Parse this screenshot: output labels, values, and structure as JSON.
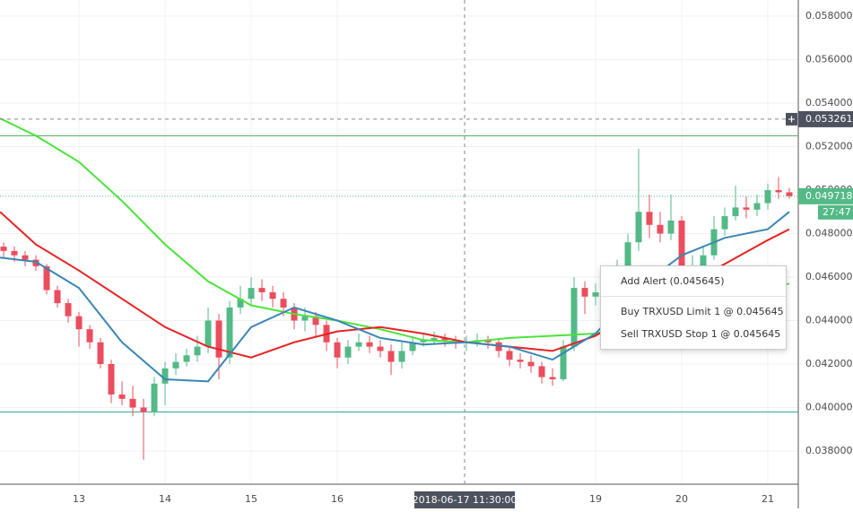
{
  "chart_data": {
    "type": "candlestick",
    "xlim": [
      12.083,
      21.354
    ],
    "ylim": [
      0.036474,
      0.058742
    ],
    "xticks": [
      13,
      14,
      15,
      16,
      19,
      20,
      21
    ],
    "yticks": [
      {
        "value": 0.038,
        "label": "0.038000"
      },
      {
        "value": 0.04,
        "label": "0.040000"
      },
      {
        "value": 0.042,
        "label": "0.042000"
      },
      {
        "value": 0.044,
        "label": "0.044000"
      },
      {
        "value": 0.046,
        "label": "0.046000"
      },
      {
        "value": 0.048,
        "label": "0.048000"
      },
      {
        "value": 0.05,
        "label": "0.050000"
      },
      {
        "value": 0.052,
        "label": "0.052000"
      },
      {
        "value": 0.054,
        "label": "0.054000"
      },
      {
        "value": 0.056,
        "label": "0.056000"
      },
      {
        "value": 0.058,
        "label": "0.058000"
      }
    ],
    "grid": true,
    "up_color": "#53b987",
    "down_color": "#eb4d5c",
    "candles": {
      "x": [
        12.125,
        12.25,
        12.375,
        12.5,
        12.625,
        12.75,
        12.875,
        13,
        13.125,
        13.25,
        13.375,
        13.5,
        13.625,
        13.75,
        13.875,
        14,
        14.125,
        14.25,
        14.375,
        14.5,
        14.625,
        14.75,
        14.875,
        15,
        15.125,
        15.25,
        15.375,
        15.5,
        15.625,
        15.75,
        15.875,
        16,
        16.125,
        16.25,
        16.375,
        16.5,
        16.625,
        16.75,
        16.875,
        17,
        17.125,
        17.25,
        17.375,
        17.5,
        17.625,
        17.75,
        17.875,
        18,
        18.125,
        18.25,
        18.375,
        18.5,
        18.625,
        18.75,
        18.875,
        19,
        19.125,
        19.25,
        19.375,
        19.5,
        19.625,
        19.75,
        19.875,
        20,
        20.125,
        20.25,
        20.375,
        20.5,
        20.625,
        20.75,
        20.875,
        21,
        21.125,
        21.25
      ],
      "open": [
        0.0474,
        0.0472,
        0.047,
        0.0468,
        0.0465,
        0.0454,
        0.0448,
        0.0442,
        0.0436,
        0.043,
        0.042,
        0.0406,
        0.0404,
        0.04,
        0.0398,
        0.0411,
        0.0418,
        0.0421,
        0.0424,
        0.0428,
        0.044,
        0.0423,
        0.0446,
        0.045,
        0.0455,
        0.0453,
        0.045,
        0.0446,
        0.044,
        0.0442,
        0.0438,
        0.043,
        0.0423,
        0.0428,
        0.043,
        0.0428,
        0.0426,
        0.0421,
        0.0426,
        0.043,
        0.0431,
        0.0432,
        0.0431,
        0.043,
        0.043,
        0.0431,
        0.043,
        0.0426,
        0.0422,
        0.0421,
        0.0419,
        0.0414,
        0.0413,
        0.0428,
        0.0455,
        0.0451,
        0.0453,
        0.0456,
        0.0465,
        0.0476,
        0.049,
        0.0484,
        0.048,
        0.0486,
        0.0462,
        0.0465,
        0.047,
        0.0482,
        0.0488,
        0.0492,
        0.0491,
        0.0494,
        0.05,
        0.0499
      ],
      "high": [
        0.0476,
        0.0474,
        0.0472,
        0.047,
        0.0466,
        0.0456,
        0.045,
        0.0444,
        0.0438,
        0.0432,
        0.0422,
        0.0412,
        0.041,
        0.0404,
        0.0414,
        0.0421,
        0.0425,
        0.0427,
        0.0433,
        0.0446,
        0.0443,
        0.0449,
        0.0456,
        0.046,
        0.0459,
        0.0456,
        0.0453,
        0.0448,
        0.0446,
        0.0444,
        0.044,
        0.0432,
        0.0431,
        0.0434,
        0.0433,
        0.0431,
        0.0429,
        0.043,
        0.0433,
        0.0434,
        0.0435,
        0.0434,
        0.0433,
        0.0433,
        0.0434,
        0.0433,
        0.0432,
        0.0428,
        0.0425,
        0.0424,
        0.0421,
        0.0418,
        0.0431,
        0.046,
        0.0458,
        0.0457,
        0.0459,
        0.0468,
        0.048,
        0.0519,
        0.0498,
        0.049,
        0.0498,
        0.0488,
        0.047,
        0.0474,
        0.0488,
        0.0492,
        0.0502,
        0.0497,
        0.0498,
        0.0503,
        0.0506,
        0.0501
      ],
      "low": [
        0.0469,
        0.0467,
        0.0465,
        0.0463,
        0.0452,
        0.0446,
        0.0439,
        0.0428,
        0.0427,
        0.0418,
        0.0402,
        0.0401,
        0.0396,
        0.0376,
        0.0396,
        0.0401,
        0.0415,
        0.0419,
        0.0421,
        0.0425,
        0.0413,
        0.042,
        0.0443,
        0.0447,
        0.0449,
        0.0446,
        0.0442,
        0.0436,
        0.0435,
        0.0432,
        0.0426,
        0.0418,
        0.042,
        0.0426,
        0.0425,
        0.0423,
        0.0415,
        0.0418,
        0.0424,
        0.0428,
        0.0429,
        0.0428,
        0.0427,
        0.0426,
        0.0428,
        0.0427,
        0.0423,
        0.0419,
        0.0418,
        0.0416,
        0.0411,
        0.041,
        0.0412,
        0.0426,
        0.0443,
        0.0447,
        0.045,
        0.0453,
        0.0462,
        0.0472,
        0.0478,
        0.0476,
        0.0477,
        0.0458,
        0.0455,
        0.0462,
        0.0468,
        0.0479,
        0.0486,
        0.0487,
        0.0488,
        0.0491,
        0.0496,
        0.0496
      ],
      "close": [
        0.0472,
        0.047,
        0.0468,
        0.0465,
        0.0454,
        0.0448,
        0.0442,
        0.0436,
        0.043,
        0.042,
        0.0406,
        0.0404,
        0.04,
        0.0398,
        0.0411,
        0.0418,
        0.0421,
        0.0424,
        0.0428,
        0.044,
        0.0423,
        0.0446,
        0.045,
        0.0455,
        0.0453,
        0.045,
        0.0446,
        0.044,
        0.0442,
        0.0438,
        0.043,
        0.0423,
        0.0428,
        0.043,
        0.0428,
        0.0426,
        0.0421,
        0.0426,
        0.043,
        0.0431,
        0.0432,
        0.0431,
        0.043,
        0.043,
        0.0431,
        0.043,
        0.0426,
        0.0422,
        0.0421,
        0.0419,
        0.0414,
        0.0413,
        0.0428,
        0.0455,
        0.0451,
        0.0453,
        0.0456,
        0.0465,
        0.0476,
        0.049,
        0.0484,
        0.048,
        0.0486,
        0.0462,
        0.0465,
        0.047,
        0.0482,
        0.0488,
        0.0492,
        0.0491,
        0.0494,
        0.05,
        0.0499,
        0.049718
      ]
    },
    "series_x": [
      12.083,
      12.5,
      13,
      13.5,
      14,
      14.5,
      15,
      15.5,
      16,
      16.5,
      17,
      17.5,
      18,
      18.5,
      19,
      19.5,
      20,
      20.5,
      21,
      21.25
    ],
    "series": [
      {
        "color": "#4be33b",
        "values": [
          0.0533,
          0.0525,
          0.0513,
          0.0495,
          0.0475,
          0.0458,
          0.0447,
          0.0443,
          0.044,
          0.0436,
          0.0431,
          0.043,
          0.0432,
          0.0433,
          0.0434,
          0.0438,
          0.0444,
          0.045,
          0.0455,
          0.0457
        ]
      },
      {
        "color": "#e52222",
        "values": [
          0.049,
          0.0475,
          0.0463,
          0.045,
          0.0437,
          0.0428,
          0.0423,
          0.043,
          0.0435,
          0.0437,
          0.0434,
          0.043,
          0.0428,
          0.0426,
          0.0433,
          0.0445,
          0.0455,
          0.0466,
          0.0477,
          0.0482
        ]
      },
      {
        "color": "#3a86b4",
        "values": [
          0.0469,
          0.0467,
          0.0455,
          0.043,
          0.0413,
          0.0412,
          0.0437,
          0.0446,
          0.044,
          0.0432,
          0.0429,
          0.043,
          0.0428,
          0.0422,
          0.0434,
          0.0455,
          0.047,
          0.0478,
          0.0482,
          0.049
        ]
      }
    ],
    "hlines": [
      {
        "value": 0.0525,
        "color": "#4caf50"
      },
      {
        "value": 0.0398,
        "color": "#26a69a"
      }
    ],
    "crosshair_y": {
      "value": 0.053261,
      "label": "0.053261"
    },
    "crosshair_x": {
      "value": 17.479,
      "label": "2018-06-17 11:30:00"
    },
    "last_price": {
      "value": 0.049718,
      "label": "0.049718",
      "countdown": "27:47",
      "color": "#53b987"
    }
  },
  "context_menu": {
    "items": [
      "Add Alert (0.045645)",
      "Buy TRXUSD Limit 1 @ 0.045645",
      "Sell TRXUSD Stop 1 @ 0.045645"
    ]
  }
}
